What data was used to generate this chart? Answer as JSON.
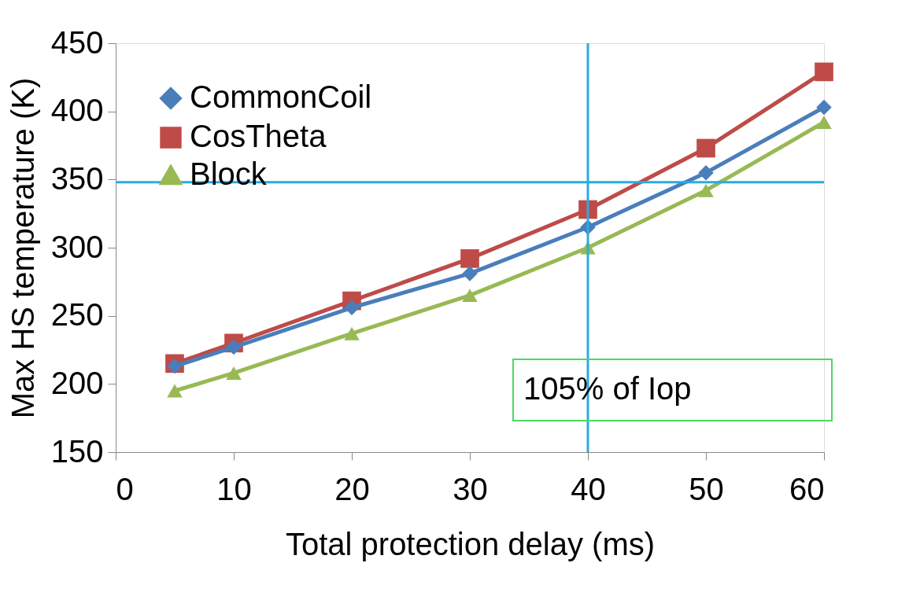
{
  "chart_data": {
    "type": "line",
    "xlabel": "Total protection delay (ms)",
    "ylabel": "Max HS temperature (K)",
    "x": [
      5,
      10,
      20,
      30,
      40,
      50,
      60
    ],
    "series": [
      {
        "name": "CommonCoil",
        "color": "#4a7ebb",
        "marker": "diamond",
        "values": [
          213,
          227,
          256,
          281,
          315,
          355,
          403
        ]
      },
      {
        "name": "CosTheta",
        "color": "#be4b48",
        "marker": "square",
        "values": [
          215,
          230,
          261,
          292,
          328,
          373,
          429
        ]
      },
      {
        "name": "Block",
        "color": "#98b954",
        "marker": "triangle",
        "values": [
          195,
          208,
          237,
          265,
          300,
          342,
          392
        ]
      }
    ],
    "xlim": [
      0,
      60
    ],
    "xticks": [
      0,
      10,
      20,
      30,
      40,
      50,
      60
    ],
    "ylim": [
      150,
      450
    ],
    "yticks": [
      150,
      200,
      250,
      300,
      350,
      400,
      450
    ],
    "ref_lines": [
      {
        "axis": "x",
        "value": 40,
        "color": "#29abe2"
      },
      {
        "axis": "y",
        "value": 348,
        "color": "#29abe2"
      }
    ],
    "annotations": [
      "105% of Iop"
    ],
    "grid": false,
    "legend": "top left",
    "line_style": "solid"
  }
}
